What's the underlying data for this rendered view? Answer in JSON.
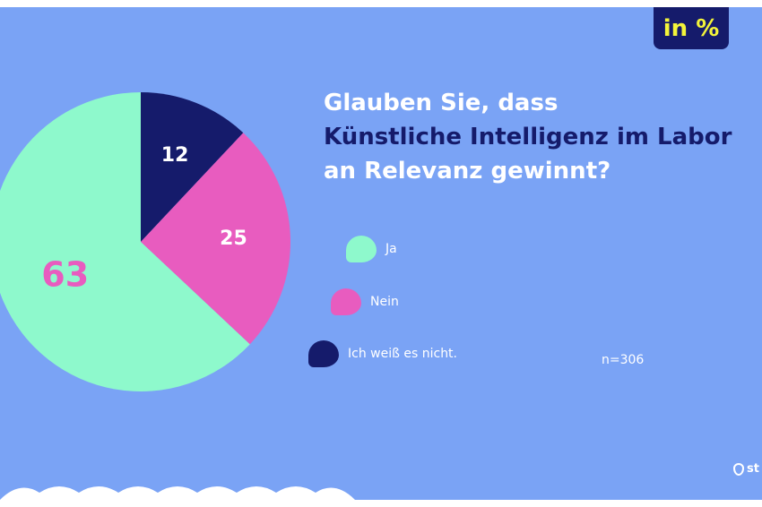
{
  "badge": {
    "label": "in %"
  },
  "title": {
    "line1": "Glauben Sie, dass",
    "line2": "Künstliche Intelligenz im Labor",
    "line3": "an Relevanz gewinnt?"
  },
  "legend": [
    {
      "label": "Ja",
      "color": "#8ef9cc"
    },
    {
      "label": "Nein",
      "color": "#e85cbf"
    },
    {
      "label": "Ich weiß es nicht.",
      "color": "#151b6b"
    }
  ],
  "sample_size": "n=306",
  "logo": {
    "text": "st",
    "icon": "drop-logo-icon"
  },
  "chart_data": {
    "type": "pie",
    "categories": [
      "Ja",
      "Nein",
      "Ich weiß es nicht."
    ],
    "values": [
      63,
      25,
      12
    ],
    "colors": [
      "#8ef9cc",
      "#e85cbf",
      "#151b6b"
    ],
    "label_colors": [
      "#e85cbf",
      "#ffffff",
      "#ffffff"
    ],
    "unit": "in %"
  }
}
